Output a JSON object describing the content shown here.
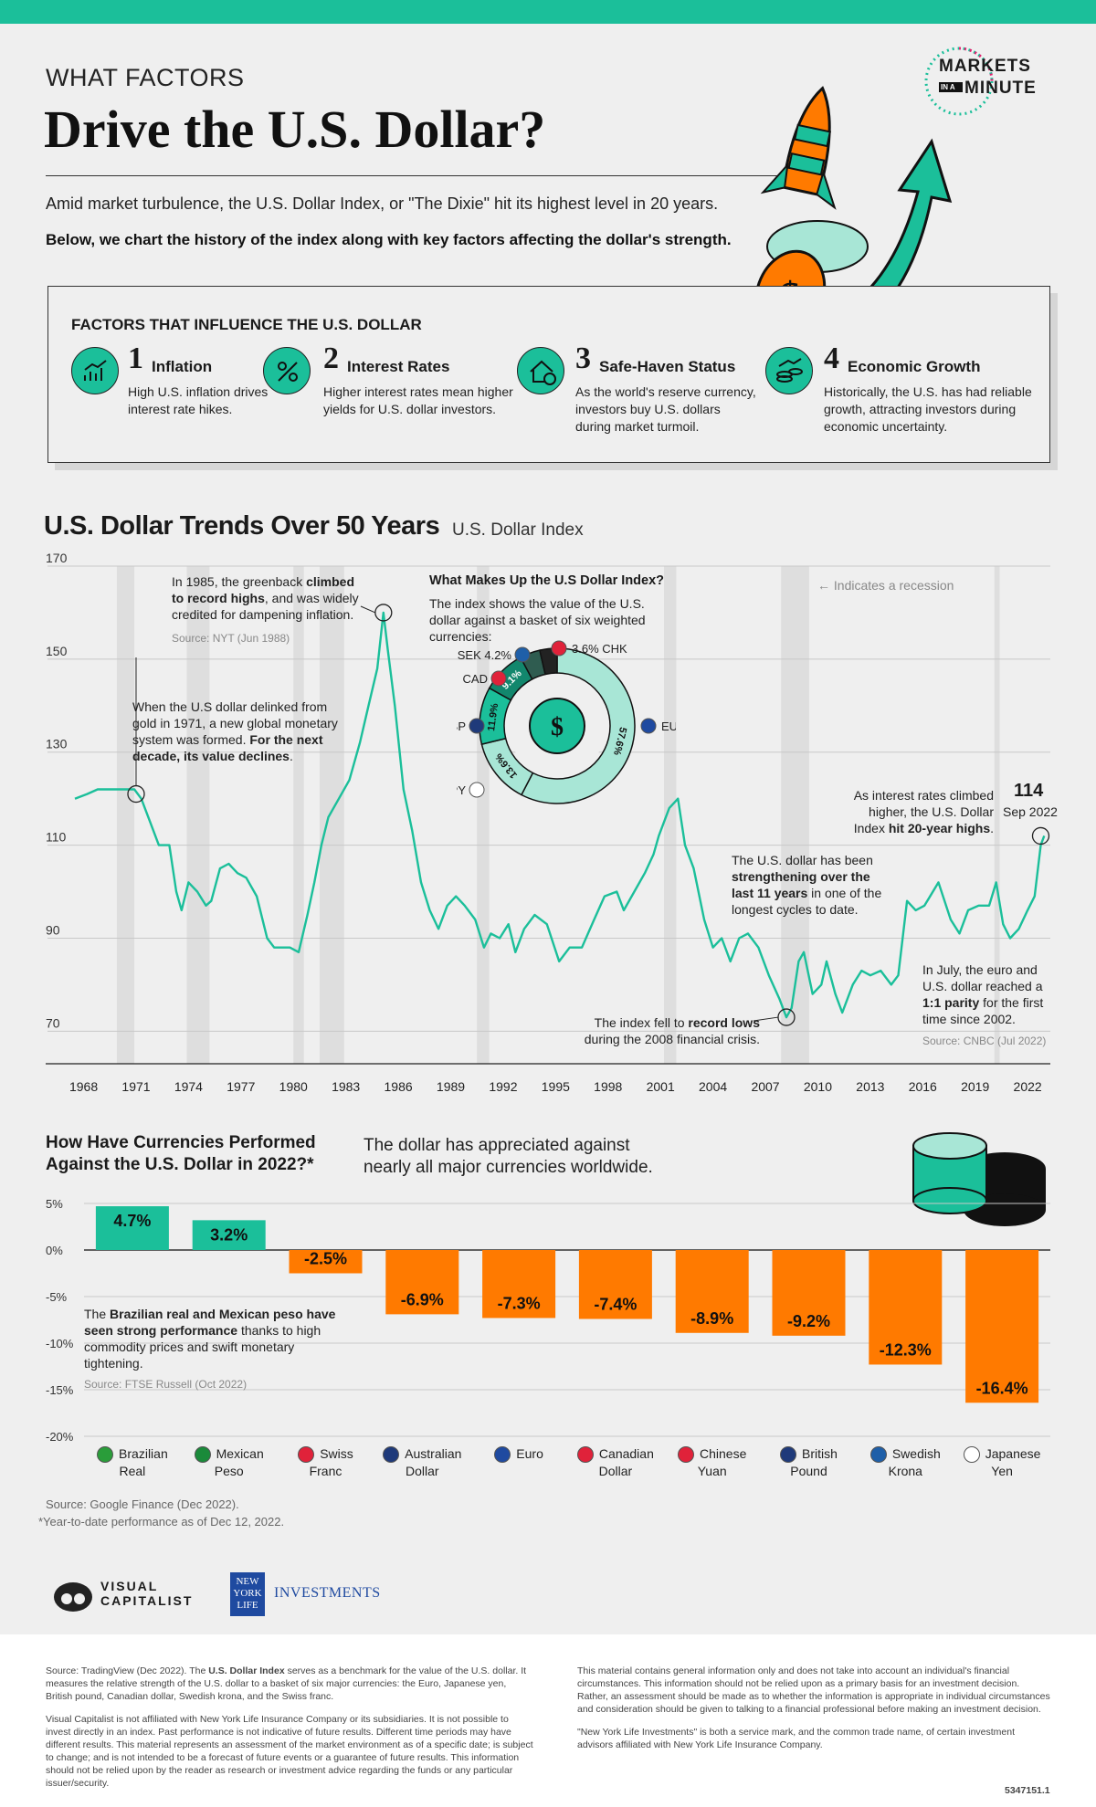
{
  "header": {
    "kicker": "WHAT FACTORS",
    "title": "Drive the U.S. Dollar?",
    "intro": "Amid market turbulence, the U.S. Dollar Index, or \"The Dixie\" hit its highest level in 20 years.",
    "intro_bold": "Below, we chart the history of the index along with key factors affecting the dollar's strength.",
    "brand_line1": "MARKETS",
    "brand_in": "IN A",
    "brand_line2": "MINUTE"
  },
  "factors": {
    "heading": "FACTORS THAT INFLUENCE THE U.S. DOLLAR",
    "items": [
      {
        "num": "1",
        "title": "Inflation",
        "text": "High U.S. inflation drives interest rate hikes.",
        "icon": "inflation-chart-icon"
      },
      {
        "num": "2",
        "title": "Interest Rates",
        "text": "Higher interest rates mean higher yields for U.S. dollar investors.",
        "icon": "percent-icon"
      },
      {
        "num": "3",
        "title": "Safe-Haven Status",
        "text": "As the world's reserve currency, investors buy U.S. dollars during market turmoil.",
        "icon": "house-dollar-icon"
      },
      {
        "num": "4",
        "title": "Economic Growth",
        "text": "Historically, the U.S. has had reliable growth, attracting investors during economic uncertainty.",
        "icon": "coins-growth-icon"
      }
    ]
  },
  "trend": {
    "title": "U.S. Dollar Trends Over 50 Years",
    "subtitle": "U.S. Dollar Index",
    "recession_note": "Indicates a recession",
    "ann_1985_a": "In 1985, the greenback ",
    "ann_1985_b": "climbed to record highs",
    "ann_1985_c": ", and was widely credited for dampening inflation.",
    "ann_1985_src": "Source: NYT (Jun 1988)",
    "ann_1971_a": "When the U.S dollar delinked from gold in 1971, a new global monetary system was formed. ",
    "ann_1971_b": "For the next decade, its value declines",
    "ann_1971_c": ".",
    "ann_2008_a": "The index fell to ",
    "ann_2008_b": "record lows",
    "ann_2008_c": "during the 2008 financial crisis.",
    "ann_11y_a": "The U.S. dollar has been ",
    "ann_11y_b": "strengthening over the last 11 years",
    "ann_11y_c": " in one of the longest cycles to date.",
    "ann_peak_a": "As interest rates climbed higher, the U.S. Dollar Index ",
    "ann_peak_b": "hit 20-year highs",
    "ann_peak_c": ".",
    "peak_value": "114",
    "peak_date": "Sep 2022",
    "ann_parity_a": "In July, the euro and U.S. dollar reached a ",
    "ann_parity_b": "1:1 parity",
    "ann_parity_c": " for the first time since 2002.",
    "ann_parity_src": "Source: CNBC (Jul 2022)",
    "basket_title": "What Makes Up the U.S Dollar Index?",
    "basket_text": "The index shows the value of the U.S. dollar against a basket of six weighted currencies:"
  },
  "chart_data": [
    {
      "type": "line",
      "title": "U.S. Dollar Trends Over 50 Years",
      "subtitle": "U.S. Dollar Index",
      "ylim": [
        63,
        170
      ],
      "yticks": [
        70,
        90,
        110,
        130,
        150,
        170
      ],
      "xlim": [
        1967.5,
        2023.3
      ],
      "xticks": [
        1968,
        1971,
        1974,
        1977,
        1980,
        1983,
        1986,
        1989,
        1992,
        1995,
        1998,
        2001,
        2004,
        2007,
        2010,
        2013,
        2016,
        2019,
        2022
      ],
      "grid": true,
      "recessions": [
        [
          1969.9,
          1970.9
        ],
        [
          1973.9,
          1975.2
        ],
        [
          1980.0,
          1980.6
        ],
        [
          1981.5,
          1982.9
        ],
        [
          1990.5,
          1991.2
        ],
        [
          2001.2,
          2001.9
        ],
        [
          2007.9,
          2009.5
        ],
        [
          2020.1,
          2020.4
        ]
      ],
      "series": [
        {
          "x": [
            1967.5,
            1968.2,
            1968.8,
            1969.5,
            1970.3,
            1970.9,
            1971.3,
            1971.8,
            1972.3,
            1972.9,
            1973.3,
            1973.6,
            1974.0,
            1974.5,
            1975.0,
            1975.3,
            1975.8,
            1976.3,
            1976.8,
            1977.3,
            1977.9,
            1978.5,
            1978.9,
            1979.3,
            1979.8,
            1980.3,
            1980.8,
            1981.2,
            1981.6,
            1982.0,
            1982.6,
            1983.2,
            1983.8,
            1984.3,
            1984.8,
            1985.15,
            1985.4,
            1985.8,
            1986.3,
            1986.8,
            1987.3,
            1987.8,
            1988.3,
            1988.8,
            1989.3,
            1989.8,
            1990.4,
            1990.9,
            1991.3,
            1991.8,
            1992.3,
            1992.7,
            1993.2,
            1993.8,
            1994.5,
            1995.2,
            1995.8,
            1996.5,
            1997.2,
            1997.8,
            1998.5,
            1998.9,
            1999.5,
            2000.1,
            2000.6,
            2000.9,
            2001.5,
            2002.0,
            2002.4,
            2002.9,
            2003.5,
            2004.0,
            2004.5,
            2005.0,
            2005.5,
            2006.0,
            2006.6,
            2007.2,
            2007.8,
            2008.2,
            2008.5,
            2008.9,
            2009.2,
            2009.7,
            2010.2,
            2010.5,
            2011.0,
            2011.4,
            2012.0,
            2012.5,
            2013.0,
            2013.6,
            2014.2,
            2014.6,
            2015.1,
            2015.6,
            2016.1,
            2016.9,
            2017.6,
            2018.1,
            2018.6,
            2019.2,
            2019.8,
            2020.2,
            2020.6,
            2021.0,
            2021.5,
            2022.0,
            2022.4,
            2022.75,
            2022.95
          ],
          "y": [
            120,
            121,
            122,
            122,
            122,
            122,
            120,
            115,
            110,
            110,
            100,
            96,
            102,
            100,
            97,
            98,
            105,
            106,
            104,
            103,
            99,
            90,
            88,
            88,
            88,
            87,
            95,
            102,
            110,
            116,
            120,
            124,
            132,
            140,
            148,
            160,
            152,
            140,
            122,
            113,
            102,
            96,
            92,
            97,
            99,
            97,
            94,
            88,
            91,
            90,
            93,
            87,
            92,
            95,
            93,
            85,
            88,
            88,
            94,
            99,
            100,
            96,
            100,
            104,
            108,
            112,
            118,
            120,
            110,
            105,
            94,
            88,
            90,
            85,
            90,
            91,
            88,
            82,
            77,
            73,
            75,
            85,
            87,
            78,
            80,
            85,
            78,
            74,
            80,
            83,
            82,
            83,
            80,
            82,
            98,
            96,
            97,
            102,
            94,
            91,
            96,
            97,
            97,
            102,
            93,
            90,
            92,
            96,
            99,
            110,
            112
          ]
        }
      ]
    },
    {
      "type": "pie",
      "title": "What Makes Up the U.S Dollar Index?",
      "labels": [
        "EUR",
        "JPY",
        "GBP",
        "CAD",
        "SEK",
        "CHK"
      ],
      "values": [
        57.6,
        13.6,
        11.9,
        9.1,
        4.2,
        3.6
      ],
      "value_labels": [
        "57.6%",
        "13.6%",
        "11.9%",
        "9.1%",
        "4.2%",
        "3.6%"
      ],
      "colors": [
        "#a8e6d6",
        "#a8e6d6",
        "#1bbf9a",
        "#12876d",
        "#2f5c50",
        "#222222"
      ]
    },
    {
      "type": "bar",
      "title": "How Have Currencies Performed Against the U.S. Dollar in 2022?*",
      "subtitle": "The dollar has appreciated against nearly all major currencies worldwide.",
      "ylim": [
        -20,
        5
      ],
      "yticks": [
        5,
        0,
        -5,
        -10,
        -15,
        -20
      ],
      "ytick_labels": [
        "5%",
        "0%",
        "-5%",
        "-10%",
        "-15%",
        "-20%"
      ],
      "categories": [
        "Brazilian Real",
        "Mexican Peso",
        "Swiss Franc",
        "Australian Dollar",
        "Euro",
        "Canadian Dollar",
        "Chinese Yuan",
        "British Pound",
        "Swedish Krona",
        "Japanese Yen"
      ],
      "values": [
        4.7,
        3.2,
        -2.5,
        -6.9,
        -7.3,
        -7.4,
        -8.9,
        -9.2,
        -12.3,
        -16.4
      ],
      "value_labels": [
        "4.7%",
        "3.2%",
        "-2.5%",
        "-6.9%",
        "-7.3%",
        "-7.4%",
        "-8.9%",
        "-9.2%",
        "-12.3%",
        "-16.4%"
      ],
      "positive_color": "#1bbf9a",
      "negative_color": "#ff7a00"
    }
  ],
  "currencies": {
    "legend": [
      {
        "line1": "Brazilian",
        "line2": "Real",
        "flag": "brazil-flag-icon",
        "color": "#2a9d3a"
      },
      {
        "line1": "Mexican",
        "line2": "Peso",
        "flag": "mexico-flag-icon",
        "color": "#1a8a3a"
      },
      {
        "line1": "Swiss",
        "line2": "Franc",
        "flag": "swiss-flag-icon",
        "color": "#e0223a"
      },
      {
        "line1": "Australian",
        "line2": "Dollar",
        "flag": "australia-flag-icon",
        "color": "#1f3a7a"
      },
      {
        "line1": "Euro",
        "line2": "",
        "flag": "eu-flag-icon",
        "color": "#1f4aa0"
      },
      {
        "line1": "Canadian",
        "line2": "Dollar",
        "flag": "canada-flag-icon",
        "color": "#e0223a"
      },
      {
        "line1": "Chinese",
        "line2": "Yuan",
        "flag": "china-flag-icon",
        "color": "#e0223a"
      },
      {
        "line1": "British",
        "line2": "Pound",
        "flag": "uk-flag-icon",
        "color": "#1f3a7a"
      },
      {
        "line1": "Swedish",
        "line2": "Krona",
        "flag": "sweden-flag-icon",
        "color": "#1f5fa8"
      },
      {
        "line1": "Japanese",
        "line2": "Yen",
        "flag": "japan-flag-icon",
        "color": "#ffffff"
      }
    ],
    "note_a": "The ",
    "note_b": "Brazilian real and Mexican peso have seen strong performance",
    "note_c": " thanks to high commodity prices and swift monetary tightening.",
    "note_src": "Source: FTSE Russell (Oct 2022)",
    "source": "Source: Google Finance (Dec 2022).",
    "footnote": "*Year-to-date performance as of Dec 12, 2022."
  },
  "logos": {
    "vc1": "VISUAL",
    "vc2": "CAPITALIST",
    "nyl1": "NEW",
    "nyl2": "YORK",
    "nyl3": "LIFE",
    "nyl_inv": "INVESTMENTS"
  },
  "footer": {
    "left_p1_a": "Source: TradingView (Dec 2022). The ",
    "left_p1_b": "U.S. Dollar Index",
    "left_p1_c": " serves as a benchmark for the value of the U.S. dollar. It measures the relative strength of the U.S. dollar to a basket of six major currencies: the Euro, Japanese yen, British pound, Canadian dollar, Swedish krona, and the Swiss franc.",
    "left_p2": "Visual Capitalist is not affiliated with New York Life Insurance Company or its subsidiaries. It is not possible to invest directly in an index. Past performance is not indicative of future results. Different time periods may have different results. This material represents an assessment of the market environment as of a specific date; is subject to change; and is not intended to be a forecast of future events or a guarantee of future results. This information should not be relied upon by the reader as research or investment advice regarding the funds or any particular issuer/security.",
    "right_p1": "This material contains general information only and does not take into account an individual's financial circumstances. This information should not be relied upon as a primary basis for an investment decision. Rather, an assessment should be made as to whether the information is appropriate in individual circumstances and consideration should be given to talking to a financial professional before making an investment decision.",
    "right_p2": "\"New York Life Investments\" is both a service mark, and the common trade name, of certain investment advisors affiliated with New York Life Insurance Company.",
    "code": "5347151.1"
  }
}
